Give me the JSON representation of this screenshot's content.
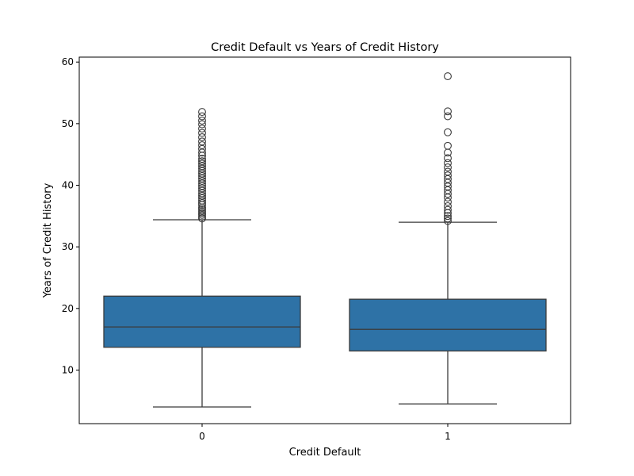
{
  "chart_data": {
    "type": "box",
    "title": "Credit Default vs Years of Credit History",
    "xlabel": "Credit Default",
    "ylabel": "Years of Credit History",
    "categories": [
      "0",
      "1"
    ],
    "ylim": [
      1.3,
      60.8
    ],
    "yticks": [
      10,
      20,
      30,
      40,
      50,
      60
    ],
    "grid": false,
    "box_color": "#2e72a6",
    "line_color": "#3b3b3b",
    "boxes": [
      {
        "category": "0",
        "whisker_low": 4.0,
        "q1": 13.7,
        "median": 17.0,
        "q3": 22.0,
        "whisker_high": 34.4,
        "outliers": [
          34.6,
          34.9,
          35.2,
          35.5,
          35.8,
          36.1,
          36.4,
          36.8,
          37.1,
          37.5,
          37.9,
          38.3,
          38.7,
          39.1,
          39.5,
          39.9,
          40.3,
          40.7,
          41.1,
          41.5,
          41.9,
          42.3,
          42.7,
          43.1,
          43.5,
          43.9,
          44.3,
          44.8,
          45.3,
          45.9,
          46.5,
          47.1,
          47.8,
          48.5,
          49.2,
          49.9,
          50.5,
          51.2,
          51.9
        ]
      },
      {
        "category": "1",
        "whisker_low": 4.5,
        "q1": 13.1,
        "median": 16.6,
        "q3": 21.5,
        "whisker_high": 34.0,
        "outliers": [
          34.2,
          34.6,
          35.0,
          35.5,
          36.0,
          36.6,
          37.3,
          38.0,
          38.6,
          39.2,
          39.8,
          40.4,
          41.0,
          41.6,
          42.2,
          42.9,
          43.6,
          44.4,
          45.3,
          46.4,
          48.6,
          51.2,
          52.0,
          57.7
        ]
      }
    ]
  }
}
